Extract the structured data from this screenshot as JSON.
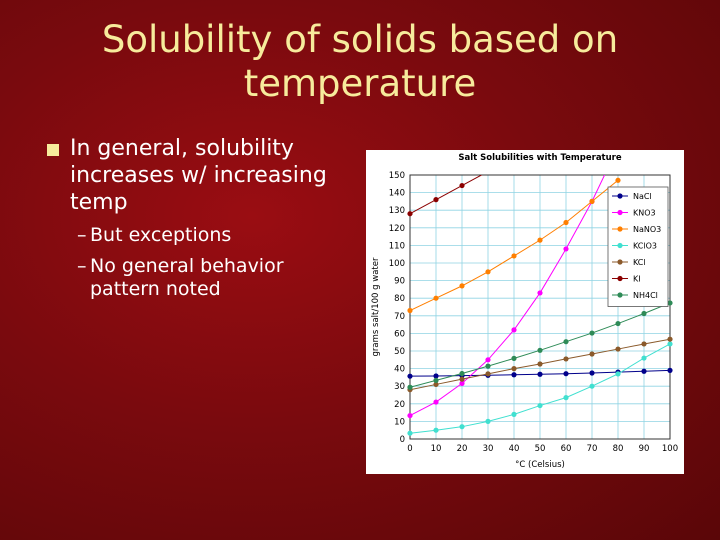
{
  "slide": {
    "title_line1": "Solubility of solids based on",
    "title_line2": "temperature",
    "bullet_main": "In general, solubility increases w/ increasing temp",
    "sub_bullets": [
      "But exceptions",
      "No general behavior pattern noted"
    ],
    "dash": "–"
  },
  "chart_data": {
    "type": "line",
    "title": "Salt Solubilities with Temperature",
    "xlabel": "°C (Celsius)",
    "ylabel": "grams salt/100 g water",
    "xlim": [
      0,
      100
    ],
    "ylim": [
      0,
      150
    ],
    "xticks": [
      0,
      10,
      20,
      30,
      40,
      50,
      60,
      70,
      80,
      90,
      100
    ],
    "yticks": [
      0,
      10,
      20,
      30,
      40,
      50,
      60,
      70,
      80,
      90,
      100,
      110,
      120,
      130,
      140,
      150
    ],
    "grid": true,
    "legend_position": "top-right",
    "series": [
      {
        "name": "NaCl",
        "color": "#00008b",
        "x": [
          0,
          10,
          20,
          30,
          40,
          50,
          60,
          70,
          80,
          90,
          100
        ],
        "y": [
          35.7,
          35.8,
          36.0,
          36.2,
          36.5,
          36.8,
          37.1,
          37.5,
          38.0,
          38.5,
          39.0
        ]
      },
      {
        "name": "KNO3",
        "color": "#ff00ff",
        "x": [
          0,
          10,
          20,
          30,
          40,
          50,
          60,
          70,
          80
        ],
        "y": [
          13.3,
          21,
          31.6,
          45,
          62,
          83,
          108,
          135,
          166
        ]
      },
      {
        "name": "NaNO3",
        "color": "#ff7f00",
        "x": [
          0,
          10,
          20,
          30,
          40,
          50,
          60,
          70,
          80
        ],
        "y": [
          73,
          80,
          87,
          95,
          104,
          113,
          123,
          135,
          147
        ]
      },
      {
        "name": "KClO3",
        "color": "#40e0d0",
        "x": [
          0,
          10,
          20,
          30,
          40,
          50,
          60,
          70,
          80,
          90,
          100
        ],
        "y": [
          3.3,
          5,
          7,
          10,
          14,
          19,
          23.5,
          30,
          37,
          46,
          54
        ]
      },
      {
        "name": "KCl",
        "color": "#8b5a2b",
        "x": [
          0,
          10,
          20,
          30,
          40,
          50,
          60,
          70,
          80,
          90,
          100
        ],
        "y": [
          28,
          31,
          34,
          37,
          40,
          42.6,
          45.5,
          48.3,
          51.1,
          54,
          56.7
        ]
      },
      {
        "name": "KI",
        "color": "#8b0000",
        "x": [
          0,
          10,
          20,
          30
        ],
        "y": [
          128,
          136,
          144,
          152
        ]
      },
      {
        "name": "NH4Cl",
        "color": "#2e8b57",
        "x": [
          0,
          10,
          20,
          30,
          40,
          50,
          60,
          70,
          80,
          90,
          100
        ],
        "y": [
          29.4,
          33.3,
          37.2,
          41.4,
          45.8,
          50.4,
          55.3,
          60.2,
          65.6,
          71.3,
          77.3
        ]
      }
    ]
  }
}
